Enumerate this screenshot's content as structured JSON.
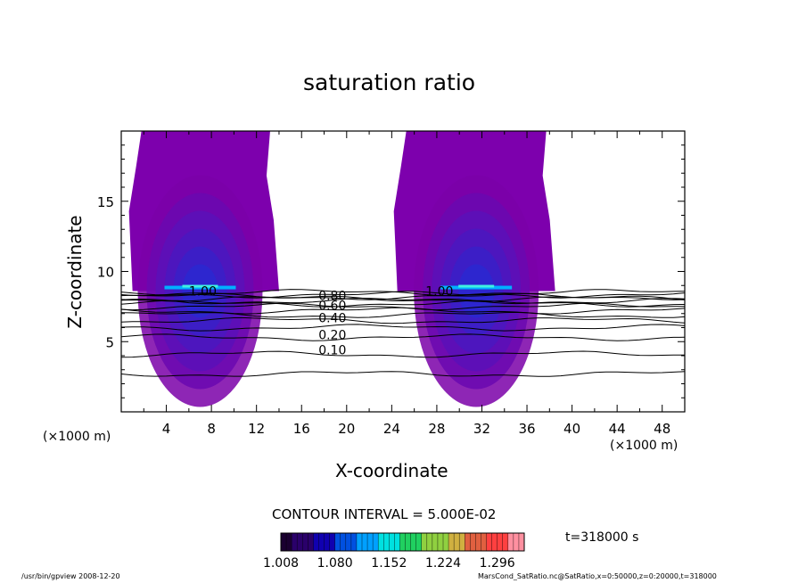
{
  "chart_data": {
    "type": "heatmap",
    "title": "saturation ratio",
    "xlabel": "X-coordinate",
    "ylabel": "Z-coordinate",
    "x_unit_left": "(×1000 m)",
    "x_unit_right": "(×1000 m)",
    "xlim": [
      0,
      50
    ],
    "ylim": [
      0,
      20
    ],
    "xticks": [
      4,
      8,
      12,
      16,
      20,
      24,
      28,
      32,
      36,
      40,
      44,
      48
    ],
    "yticks": [
      5,
      10,
      15
    ],
    "contour_interval_label": "CONTOUR INTERVAL = 5.000E-02",
    "colorbar_ticks": [
      "1.008",
      "1.080",
      "1.152",
      "1.224",
      "1.296"
    ],
    "colorbar_colors": [
      "#1a0030",
      "#2a006a",
      "#1000b0",
      "#0050e0",
      "#00a0ff",
      "#00e0e0",
      "#20d060",
      "#90d040",
      "#d0b040",
      "#e06040",
      "#ff4040",
      "#ff90a0"
    ],
    "colorbar_range": [
      1.008,
      1.332
    ],
    "plumes": [
      {
        "x_left": 1.0,
        "x_right": 14.0,
        "z_base": 8.6,
        "core_x": 7.0
      },
      {
        "x_left": 24.5,
        "x_right": 38.5,
        "z_base": 8.6,
        "core_x": 31.5
      }
    ],
    "contour_labels": [
      {
        "text": "1.00",
        "x": 6.0,
        "z": 8.6
      },
      {
        "text": "1.00",
        "x": 27.0,
        "z": 8.6
      },
      {
        "text": "0.20",
        "x": 17.5,
        "z": 5.5
      },
      {
        "text": "0.10",
        "x": 17.5,
        "z": 4.4
      },
      {
        "text": "0.40",
        "x": 17.5,
        "z": 6.7
      },
      {
        "text": "0.60",
        "x": 17.5,
        "z": 7.6
      },
      {
        "text": "0.80",
        "x": 17.5,
        "z": 8.3
      }
    ],
    "contour_levels_z": [
      2.7,
      4.1,
      5.3,
      6.0,
      6.5,
      6.9,
      7.2,
      7.5,
      7.7,
      7.9,
      8.05,
      8.2,
      8.35,
      8.5
    ],
    "time_label": "t=318000 s"
  },
  "footer": {
    "left": "/usr/bin/gpview   2008-12-20",
    "right": "MarsCond_SatRatio.nc@SatRatio,x=0:50000,z=0:20000,t=318000"
  }
}
